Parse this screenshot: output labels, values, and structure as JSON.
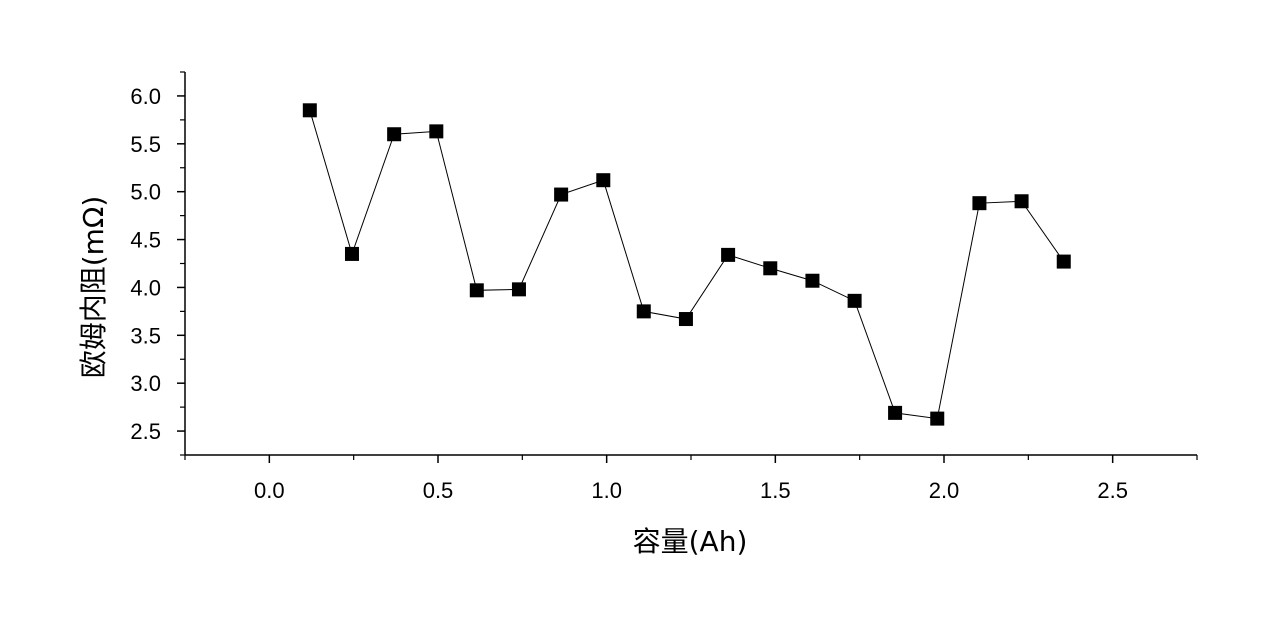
{
  "chart_data": {
    "type": "scatter",
    "title": "",
    "xlabel": "容量(Ah)",
    "ylabel": "欧姆内阻(mΩ)",
    "xlim": [
      -0.25,
      2.75
    ],
    "ylim": [
      2.25,
      6.25
    ],
    "x_ticks": [
      0.0,
      0.5,
      1.0,
      1.5,
      2.0,
      2.5
    ],
    "x_tick_labels": [
      "0.0",
      "0.5",
      "1.0",
      "1.5",
      "2.0",
      "2.5"
    ],
    "y_ticks": [
      2.5,
      3.0,
      3.5,
      4.0,
      4.5,
      5.0,
      5.5,
      6.0
    ],
    "y_tick_labels": [
      "2.5",
      "3.0",
      "3.5",
      "4.0",
      "4.5",
      "5.0",
      "5.5",
      "6.0"
    ],
    "grid": false,
    "marker": "square",
    "connected": true,
    "colors": {
      "marker": "#000000",
      "line": "#000000"
    },
    "series": [
      {
        "x": [
          0.12,
          0.245,
          0.37,
          0.495,
          0.615,
          0.74,
          0.865,
          0.99,
          1.11,
          1.235,
          1.36,
          1.485,
          1.61,
          1.735,
          1.855,
          1.98,
          2.105,
          2.23,
          2.355
        ],
        "y": [
          5.85,
          4.35,
          5.6,
          5.63,
          3.97,
          3.98,
          4.97,
          5.12,
          3.75,
          3.67,
          4.34,
          4.2,
          4.07,
          3.86,
          2.69,
          2.63,
          4.88,
          4.9,
          4.27
        ]
      }
    ]
  }
}
